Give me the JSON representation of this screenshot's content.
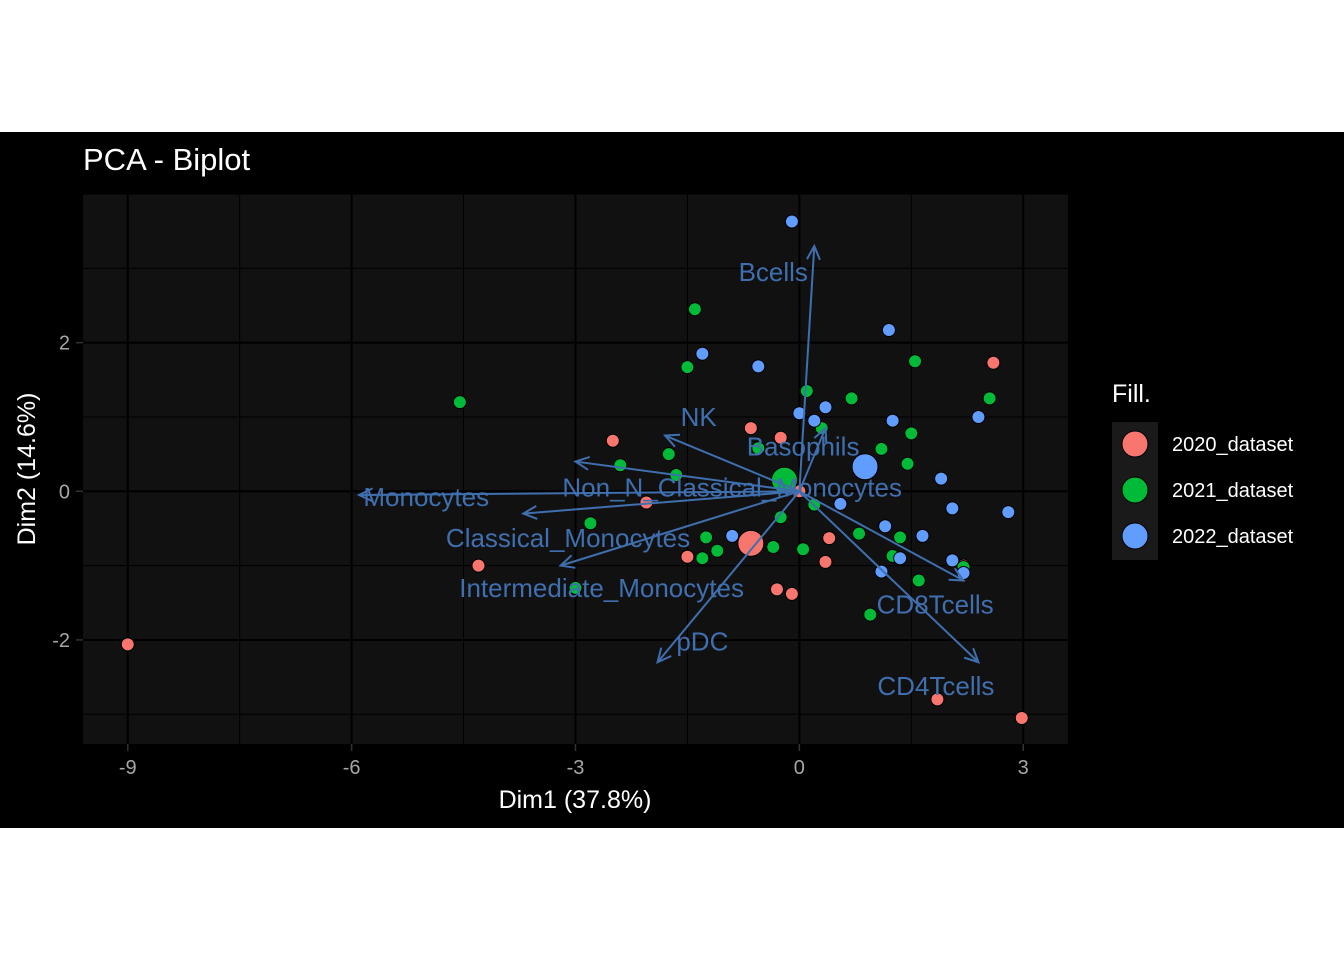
{
  "chart_data": {
    "type": "scatter",
    "title": "PCA - Biplot",
    "xlabel": "Dim1 (37.8%)",
    "ylabel": "Dim2 (14.6%)",
    "xlim": [
      -9.6,
      3.6
    ],
    "ylim": [
      -3.4,
      4.0
    ],
    "xticks": [
      -9,
      -6,
      -3,
      0,
      3
    ],
    "yticks": [
      -2,
      0,
      2
    ],
    "grid": true,
    "legend": {
      "title": "Fill.",
      "position": "right"
    },
    "colors": {
      "2020_dataset": "#F8766D",
      "2021_dataset": "#00BA38",
      "2022_dataset": "#619CFF",
      "arrow": "#3F6FAE"
    },
    "series": [
      {
        "name": "2020_dataset",
        "points": [
          [
            -9.0,
            -2.06
          ],
          [
            -4.3,
            -1.0
          ],
          [
            -2.5,
            0.68
          ],
          [
            -2.05,
            -0.15
          ],
          [
            -1.5,
            -0.88
          ],
          [
            -0.65,
            0.85
          ],
          [
            -0.25,
            0.72
          ],
          [
            -0.3,
            -1.32
          ],
          [
            -0.1,
            -1.38
          ],
          [
            0.0,
            0.0
          ],
          [
            0.4,
            -0.63
          ],
          [
            0.35,
            -0.95
          ],
          [
            1.85,
            -2.8
          ],
          [
            2.2,
            -1.0
          ],
          [
            2.6,
            1.73
          ],
          [
            2.98,
            -3.05
          ]
        ],
        "centroid": [
          -0.65,
          -0.7
        ]
      },
      {
        "name": "2021_dataset",
        "points": [
          [
            -4.55,
            1.2
          ],
          [
            -3.0,
            -1.3
          ],
          [
            -2.8,
            -0.43
          ],
          [
            -2.4,
            0.35
          ],
          [
            -1.75,
            0.5
          ],
          [
            -1.65,
            0.22
          ],
          [
            -1.5,
            1.67
          ],
          [
            -1.4,
            2.45
          ],
          [
            -1.3,
            -0.9
          ],
          [
            -1.25,
            -0.62
          ],
          [
            -1.1,
            -0.8
          ],
          [
            -0.55,
            0.58
          ],
          [
            -0.35,
            -0.75
          ],
          [
            -0.25,
            -0.35
          ],
          [
            0.05,
            -0.78
          ],
          [
            0.1,
            1.35
          ],
          [
            0.2,
            -0.18
          ],
          [
            0.3,
            0.85
          ],
          [
            0.7,
            1.25
          ],
          [
            0.8,
            -0.57
          ],
          [
            1.1,
            0.57
          ],
          [
            1.25,
            -0.87
          ],
          [
            1.35,
            -0.62
          ],
          [
            1.45,
            0.37
          ],
          [
            1.5,
            0.78
          ],
          [
            1.55,
            1.75
          ],
          [
            1.6,
            -1.2
          ],
          [
            2.2,
            -1.02
          ],
          [
            2.55,
            1.25
          ],
          [
            0.95,
            -1.66
          ]
        ],
        "centroid": [
          -0.2,
          0.15
        ]
      },
      {
        "name": "2022_dataset",
        "points": [
          [
            -0.1,
            3.63
          ],
          [
            1.2,
            2.17
          ],
          [
            -1.3,
            1.85
          ],
          [
            -0.55,
            1.68
          ],
          [
            0.0,
            1.05
          ],
          [
            0.2,
            0.95
          ],
          [
            0.35,
            1.13
          ],
          [
            0.55,
            -0.17
          ],
          [
            -0.9,
            -0.6
          ],
          [
            1.1,
            -1.08
          ],
          [
            1.15,
            -0.47
          ],
          [
            1.35,
            -0.9
          ],
          [
            1.65,
            -0.6
          ],
          [
            1.9,
            0.17
          ],
          [
            2.05,
            -0.23
          ],
          [
            2.05,
            -0.93
          ],
          [
            2.2,
            -1.1
          ],
          [
            2.4,
            1.0
          ],
          [
            2.8,
            -0.28
          ],
          [
            1.25,
            0.95
          ]
        ],
        "centroid": [
          0.88,
          0.33
        ]
      }
    ],
    "variables": [
      {
        "name": "Bcells",
        "x": 0.2,
        "y": 3.3,
        "label": [
          -0.35,
          2.95
        ]
      },
      {
        "name": "NK",
        "x": -1.8,
        "y": 0.75,
        "label": [
          -1.35,
          1.0
        ]
      },
      {
        "name": "Basophils",
        "x": 0.35,
        "y": 0.85,
        "label": [
          0.05,
          0.6
        ]
      },
      {
        "name": "Monocytes",
        "x": -5.9,
        "y": -0.05,
        "label": [
          -5.0,
          -0.08
        ]
      },
      {
        "name": "Non_N_Classical_Monocytes",
        "x": -3.0,
        "y": 0.4,
        "label": [
          -0.9,
          0.05
        ]
      },
      {
        "name": "Classical_Monocytes",
        "x": -3.7,
        "y": -0.3,
        "label": [
          -3.1,
          -0.63
        ]
      },
      {
        "name": "Intermediate_Monocytes",
        "x": -3.2,
        "y": -1.0,
        "label": [
          -2.65,
          -1.3
        ]
      },
      {
        "name": "pDC",
        "x": -1.9,
        "y": -2.3,
        "label": [
          -1.3,
          -2.02
        ]
      },
      {
        "name": "CD8Tcells",
        "x": 2.2,
        "y": -1.2,
        "label": [
          1.82,
          -1.52
        ]
      },
      {
        "name": "CD4Tcells",
        "x": 2.4,
        "y": -2.3,
        "label": [
          1.83,
          -2.62
        ]
      }
    ]
  }
}
